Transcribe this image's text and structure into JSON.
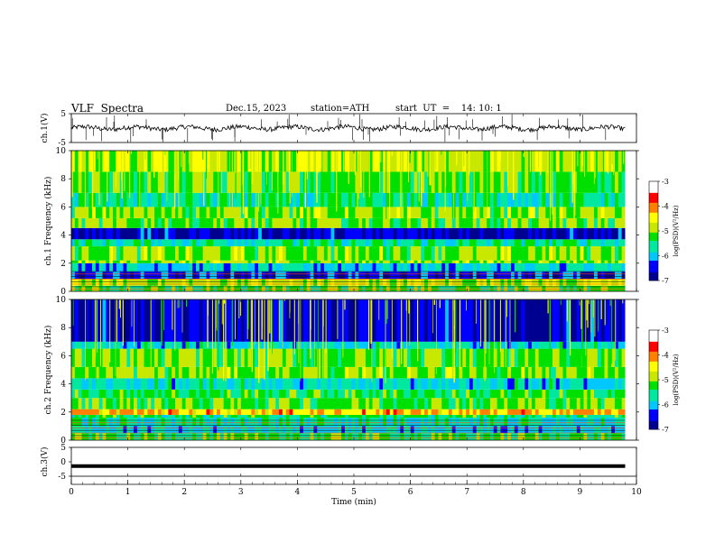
{
  "header": {
    "title": "VLF  Spectra",
    "date": "Dec.15, 2023",
    "station": "station=ATH",
    "start": "start  UT  =    14: 10: 1"
  },
  "chart_data": [
    {
      "type": "line",
      "id": "ch1-waveform",
      "ylabel": "ch.1(V)",
      "ylim": [
        -5,
        5
      ],
      "yticks": [
        "5",
        "-5"
      ],
      "xlim": [
        0,
        10
      ],
      "series": [
        {
          "description": "noisy waveform near 0 V with occasional spikes",
          "values_approx": [
            0
          ]
        }
      ]
    },
    {
      "type": "heatmap",
      "id": "ch1-spectrogram",
      "ylabel": "ch.1 Frequency (kHz)",
      "ylim": [
        0,
        10
      ],
      "yticks": [
        "0",
        "2",
        "4",
        "6",
        "8",
        "10"
      ],
      "xlim": [
        0,
        10
      ],
      "data_end_min": 9.8,
      "bands": [
        {
          "f_lo": 0.0,
          "f_hi": 0.4,
          "level": -5.2
        },
        {
          "f_lo": 0.4,
          "f_hi": 0.9,
          "level": -4.8
        },
        {
          "f_lo": 0.9,
          "f_hi": 1.4,
          "level": -6.4
        },
        {
          "f_lo": 1.4,
          "f_hi": 2.0,
          "level": -5.9
        },
        {
          "f_lo": 2.0,
          "f_hi": 2.2,
          "level": -4.9
        },
        {
          "f_lo": 2.2,
          "f_hi": 3.2,
          "level": -5.0
        },
        {
          "f_lo": 3.2,
          "f_hi": 3.7,
          "level": -5.6
        },
        {
          "f_lo": 3.7,
          "f_hi": 4.5,
          "level": -6.6
        },
        {
          "f_lo": 4.5,
          "f_hi": 5.2,
          "level": -5.1
        },
        {
          "f_lo": 5.2,
          "f_hi": 6.0,
          "level": -5.0
        },
        {
          "f_lo": 6.0,
          "f_hi": 7.0,
          "level": -5.6
        },
        {
          "f_lo": 7.0,
          "f_hi": 8.5,
          "level": -5.2
        },
        {
          "f_lo": 8.5,
          "f_hi": 10.0,
          "level": -4.8
        }
      ]
    },
    {
      "type": "heatmap",
      "id": "ch2-spectrogram",
      "ylabel": "ch.2 Frequency (kHz)",
      "ylim": [
        0,
        10
      ],
      "yticks": [
        "0",
        "2",
        "4",
        "6",
        "8",
        "10"
      ],
      "xlim": [
        0,
        10
      ],
      "data_end_min": 9.8,
      "bands": [
        {
          "f_lo": 0.0,
          "f_hi": 0.5,
          "level": -5.3
        },
        {
          "f_lo": 0.5,
          "f_hi": 1.0,
          "level": -5.9
        },
        {
          "f_lo": 1.0,
          "f_hi": 1.6,
          "level": -5.6
        },
        {
          "f_lo": 1.6,
          "f_hi": 1.8,
          "level": -5.4
        },
        {
          "f_lo": 1.8,
          "f_hi": 2.2,
          "level": -4.2
        },
        {
          "f_lo": 2.2,
          "f_hi": 3.0,
          "level": -5.1
        },
        {
          "f_lo": 3.0,
          "f_hi": 3.6,
          "level": -5.3
        },
        {
          "f_lo": 3.6,
          "f_hi": 4.4,
          "level": -5.8
        },
        {
          "f_lo": 4.4,
          "f_hi": 5.2,
          "level": -5.0
        },
        {
          "f_lo": 5.2,
          "f_hi": 6.5,
          "level": -5.1
        },
        {
          "f_lo": 6.5,
          "f_hi": 7.0,
          "level": -5.8
        },
        {
          "f_lo": 7.0,
          "f_hi": 10.0,
          "level": -6.6
        }
      ]
    },
    {
      "type": "line",
      "id": "ch3-waveform",
      "ylabel": "ch.3(V)",
      "ylim": [
        -5,
        5
      ],
      "yticks": [
        "5",
        "0",
        "-5"
      ],
      "xlim": [
        0,
        10
      ],
      "series": [
        {
          "description": "thick flat trace",
          "values_approx": [
            -1.5
          ]
        }
      ]
    }
  ],
  "time_axis": {
    "label": "Time  (min)",
    "ticks": [
      "0",
      "1",
      "2",
      "3",
      "4",
      "5",
      "6",
      "7",
      "8",
      "9",
      "10"
    ]
  },
  "colorbar": {
    "label": "log(PSD)(V²/Hz)",
    "range": [
      -7,
      -3
    ],
    "ticks": [
      "-3",
      "-4",
      "-5",
      "-6",
      "-7"
    ],
    "colormap": [
      "#000090",
      "#0000ff",
      "#00c8ff",
      "#00e8a0",
      "#00e000",
      "#c8e800",
      "#ffff00",
      "#ff8000",
      "#ff0000",
      "#ffffff"
    ]
  }
}
